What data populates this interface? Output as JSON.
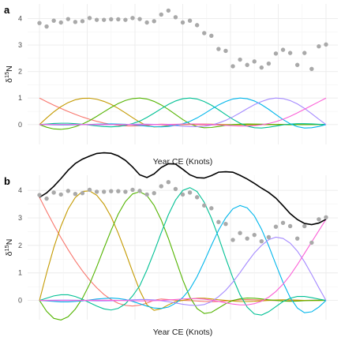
{
  "chart_data": [
    {
      "panel_label": "a",
      "type": "scatter",
      "xlabel": "Year CE (Knots)",
      "ylabel": "δ15N",
      "x_range": [
        0,
        40
      ],
      "ylim": [
        -0.75,
        4.55
      ],
      "y_ticks": [
        0,
        1,
        2,
        3,
        4
      ],
      "grid": true,
      "legend": "none",
      "point_color": "#a9a9a9",
      "basis_colors": [
        "#F8766D",
        "#C49A00",
        "#53B400",
        "#00C094",
        "#00B6EB",
        "#A58AFF",
        "#FB61D7"
      ],
      "points": {
        "x": [
          0,
          1,
          2,
          3,
          4,
          5,
          6,
          7,
          8,
          9,
          10,
          11,
          12,
          13,
          14,
          15,
          16,
          17,
          18,
          19,
          20,
          21,
          22,
          23,
          24,
          25,
          26,
          27,
          28,
          29,
          30,
          31,
          32,
          33,
          34,
          35,
          36,
          37,
          38,
          39,
          40
        ],
        "y": [
          3.83,
          3.7,
          3.92,
          3.85,
          3.98,
          3.87,
          3.9,
          4.02,
          3.95,
          3.95,
          3.97,
          3.97,
          3.95,
          4.02,
          3.98,
          3.85,
          3.9,
          4.15,
          4.3,
          4.05,
          3.85,
          3.92,
          3.75,
          3.45,
          3.35,
          2.85,
          2.78,
          2.2,
          2.45,
          2.25,
          2.38,
          2.15,
          2.3,
          2.68,
          2.82,
          2.7,
          2.25,
          2.7,
          2.1,
          2.95,
          3.02
        ]
      },
      "series": [
        {
          "type": "line",
          "x": [
            0,
            1,
            2,
            3,
            4,
            5,
            6,
            7,
            8,
            9,
            10,
            11,
            12,
            13,
            14,
            15,
            16,
            17,
            18,
            19,
            20,
            21,
            22,
            23,
            24,
            25,
            26,
            27,
            28,
            29,
            30,
            31,
            32,
            33,
            34,
            35,
            36,
            37,
            38,
            39,
            40
          ],
          "values": [
            1.0,
            0.863,
            0.732,
            0.608,
            0.492,
            0.384,
            0.286,
            0.198,
            0.122,
            0.058,
            0.008,
            -0.028,
            -0.048,
            -0.054,
            -0.046,
            -0.026,
            0.002,
            0.014,
            0.008,
            0.002,
            0,
            -0.002,
            -0.006,
            -0.01,
            -0.012,
            -0.01,
            -0.006,
            0,
            0.006,
            0.008,
            0.006,
            0.004,
            0,
            -0.002,
            -0.004,
            -0.004,
            -0.002,
            0,
            0.002,
            0.002,
            0
          ]
        },
        {
          "type": "line",
          "x": [
            0,
            1,
            2,
            3,
            4,
            5,
            6,
            7,
            8,
            9,
            10,
            11,
            12,
            13,
            14,
            15,
            16,
            17,
            18,
            19,
            20,
            21,
            22,
            23,
            24,
            25,
            26,
            27,
            28,
            29,
            30,
            31,
            32,
            33,
            34,
            35,
            36,
            37,
            38,
            39,
            40
          ],
          "values": [
            0,
            0.25,
            0.48,
            0.675,
            0.83,
            0.935,
            0.99,
            0.995,
            0.955,
            0.875,
            0.76,
            0.61,
            0.44,
            0.26,
            0.09,
            -0.04,
            -0.09,
            -0.075,
            -0.04,
            -0.01,
            0,
            0.012,
            0.02,
            0.02,
            0.014,
            0.006,
            0,
            -0.006,
            -0.01,
            -0.01,
            -0.008,
            -0.004,
            0,
            0.004,
            0.006,
            0.005,
            0.003,
            0,
            -0.002,
            -0.002,
            0
          ]
        },
        {
          "type": "line",
          "x": [
            0,
            1,
            2,
            3,
            4,
            5,
            6,
            7,
            8,
            9,
            10,
            11,
            12,
            13,
            14,
            15,
            16,
            17,
            18,
            19,
            20,
            21,
            22,
            23,
            24,
            25,
            26,
            27,
            28,
            29,
            30,
            31,
            32,
            33,
            34,
            35,
            36,
            37,
            38,
            39,
            40
          ],
          "values": [
            0,
            -0.1,
            -0.165,
            -0.18,
            -0.15,
            -0.08,
            0.02,
            0.15,
            0.31,
            0.48,
            0.645,
            0.795,
            0.91,
            0.98,
            1.0,
            0.965,
            0.875,
            0.74,
            0.57,
            0.38,
            0.19,
            0.03,
            -0.075,
            -0.12,
            -0.11,
            -0.07,
            -0.03,
            0,
            0.015,
            0.022,
            0.02,
            0.014,
            0.006,
            0,
            -0.006,
            -0.008,
            -0.006,
            -0.003,
            0,
            0.002,
            0
          ]
        },
        {
          "type": "line",
          "x": [
            0,
            1,
            2,
            3,
            4,
            5,
            6,
            7,
            8,
            9,
            10,
            11,
            12,
            13,
            14,
            15,
            16,
            17,
            18,
            19,
            20,
            21,
            22,
            23,
            24,
            25,
            26,
            27,
            28,
            29,
            30,
            31,
            32,
            33,
            34,
            35,
            36,
            37,
            38,
            39,
            40
          ],
          "values": [
            0,
            0.02,
            0.04,
            0.05,
            0.05,
            0.035,
            0.01,
            -0.02,
            -0.05,
            -0.075,
            -0.085,
            -0.07,
            -0.03,
            0.04,
            0.13,
            0.27,
            0.43,
            0.6,
            0.76,
            0.89,
            0.975,
            1.0,
            0.965,
            0.87,
            0.73,
            0.56,
            0.375,
            0.2,
            0.05,
            -0.06,
            -0.12,
            -0.13,
            -0.1,
            -0.055,
            -0.01,
            0.02,
            0.035,
            0.035,
            0.025,
            0.012,
            0
          ]
        },
        {
          "type": "line",
          "x": [
            0,
            1,
            2,
            3,
            4,
            5,
            6,
            7,
            8,
            9,
            10,
            11,
            12,
            13,
            14,
            15,
            16,
            17,
            18,
            19,
            20,
            21,
            22,
            23,
            24,
            25,
            26,
            27,
            28,
            29,
            30,
            31,
            32,
            33,
            34,
            35,
            36,
            37,
            38,
            39,
            40
          ],
          "values": [
            0,
            -0.005,
            -0.01,
            -0.015,
            -0.015,
            -0.01,
            -0.005,
            0.005,
            0.015,
            0.02,
            0.025,
            0.02,
            0.01,
            -0.01,
            -0.035,
            -0.06,
            -0.08,
            -0.085,
            -0.07,
            -0.03,
            0.03,
            0.12,
            0.25,
            0.41,
            0.58,
            0.74,
            0.87,
            0.965,
            1.0,
            0.975,
            0.89,
            0.75,
            0.575,
            0.38,
            0.19,
            0.03,
            -0.08,
            -0.13,
            -0.12,
            -0.07,
            0
          ]
        },
        {
          "type": "line",
          "x": [
            0,
            1,
            2,
            3,
            4,
            5,
            6,
            7,
            8,
            9,
            10,
            11,
            12,
            13,
            14,
            15,
            16,
            17,
            18,
            19,
            20,
            21,
            22,
            23,
            24,
            25,
            26,
            27,
            28,
            29,
            30,
            31,
            32,
            33,
            34,
            35,
            36,
            37,
            38,
            39,
            40
          ],
          "values": [
            0,
            0.002,
            0.004,
            0.005,
            0.005,
            0.003,
            0,
            -0.004,
            -0.007,
            -0.008,
            -0.006,
            -0.002,
            0.004,
            0.01,
            0.014,
            0.014,
            0.008,
            -0.004,
            -0.02,
            -0.04,
            -0.06,
            -0.075,
            -0.08,
            -0.065,
            -0.02,
            0.06,
            0.16,
            0.29,
            0.44,
            0.6,
            0.75,
            0.87,
            0.96,
            1.0,
            0.98,
            0.905,
            0.78,
            0.61,
            0.41,
            0.2,
            0
          ]
        },
        {
          "type": "line",
          "x": [
            0,
            1,
            2,
            3,
            4,
            5,
            6,
            7,
            8,
            9,
            10,
            11,
            12,
            13,
            14,
            15,
            16,
            17,
            18,
            19,
            20,
            21,
            22,
            23,
            24,
            25,
            26,
            27,
            28,
            29,
            30,
            31,
            32,
            33,
            34,
            35,
            36,
            37,
            38,
            39,
            40
          ],
          "values": [
            0,
            -0.001,
            -0.002,
            -0.002,
            -0.002,
            -0.001,
            0,
            0.002,
            0.003,
            0.003,
            0.002,
            0,
            -0.002,
            -0.004,
            -0.006,
            -0.006,
            -0.004,
            0,
            0.006,
            0.012,
            0.018,
            0.022,
            0.022,
            0.016,
            0.004,
            -0.012,
            -0.03,
            -0.045,
            -0.055,
            -0.055,
            -0.04,
            -0.01,
            0.04,
            0.11,
            0.2,
            0.31,
            0.44,
            0.58,
            0.72,
            0.86,
            1.0
          ]
        }
      ]
    },
    {
      "panel_label": "b",
      "type": "scatter",
      "xlabel": "Year CE (Knots)",
      "ylabel": "δ15N",
      "x_range": [
        0,
        40
      ],
      "ylim": [
        -0.7,
        4.55
      ],
      "y_ticks": [
        0,
        1,
        2,
        3,
        4
      ],
      "grid": true,
      "legend": "none",
      "point_color": "#a9a9a9",
      "fit_color": "#000000",
      "weights": [
        3.75,
        4.0,
        3.95,
        4.1,
        3.45,
        2.3,
        2.95
      ],
      "points": {
        "x": [
          0,
          1,
          2,
          3,
          4,
          5,
          6,
          7,
          8,
          9,
          10,
          11,
          12,
          13,
          14,
          15,
          16,
          17,
          18,
          19,
          20,
          21,
          22,
          23,
          24,
          25,
          26,
          27,
          28,
          29,
          30,
          31,
          32,
          33,
          34,
          35,
          36,
          37,
          38,
          39,
          40
        ],
        "y": [
          3.83,
          3.7,
          3.92,
          3.85,
          3.98,
          3.87,
          3.9,
          4.02,
          3.95,
          3.95,
          3.97,
          3.97,
          3.95,
          4.02,
          3.98,
          3.85,
          3.9,
          4.15,
          4.3,
          4.05,
          3.85,
          3.92,
          3.75,
          3.45,
          3.35,
          2.85,
          2.78,
          2.2,
          2.45,
          2.25,
          2.38,
          2.15,
          2.3,
          2.68,
          2.82,
          2.7,
          2.25,
          2.7,
          2.1,
          2.95,
          3.02
        ]
      }
    }
  ]
}
